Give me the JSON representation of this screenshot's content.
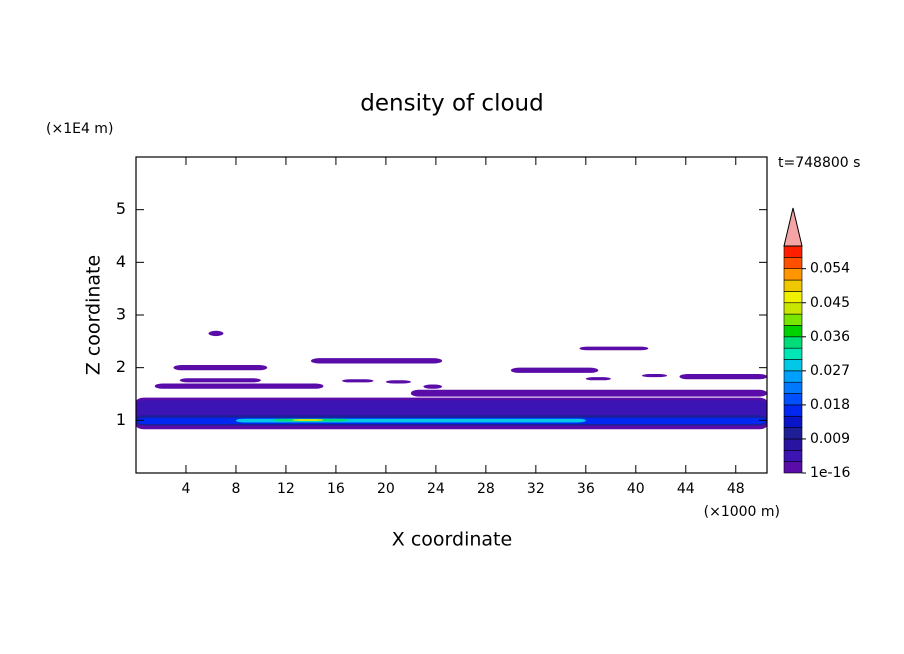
{
  "chart_data": {
    "type": "contour",
    "title": "density of cloud",
    "xlabel": "X coordinate",
    "ylabel": "Z coordinate",
    "xunit": "(×1000 m)",
    "yunit": "(×1E4 m)",
    "time_label": "t=748800 s",
    "xlim": [
      0,
      50.5
    ],
    "ylim": [
      0,
      6
    ],
    "xticks": [
      4,
      8,
      12,
      16,
      20,
      24,
      28,
      32,
      36,
      40,
      44,
      48
    ],
    "yticks": [
      1,
      2,
      3,
      4,
      5
    ],
    "colorbar": {
      "lim": [
        1e-16,
        0.06
      ],
      "ticks": [
        1e-16,
        0.009,
        0.018,
        0.027,
        0.036,
        0.045,
        0.054
      ],
      "colors": [
        "#5a0ca8",
        "#3c14b4",
        "#2814a0",
        "#1e1e96",
        "#0a14c8",
        "#0028f0",
        "#0050ff",
        "#0078ff",
        "#00a0ff",
        "#00c8e6",
        "#00e6b4",
        "#00dc78",
        "#00d200",
        "#78e600",
        "#c8e600",
        "#f0f000",
        "#f0c800",
        "#ff9600",
        "#ff5000",
        "#ff1e00"
      ],
      "extend_color": "#f4a4a4"
    },
    "regions": [
      {
        "x": [
          0,
          50.5
        ],
        "z": [
          0.83,
          1.43
        ],
        "value": 0.001
      },
      {
        "x": [
          0,
          50.5
        ],
        "z": [
          0.9,
          1.38
        ],
        "value": 0.004
      },
      {
        "x": [
          0,
          50.5
        ],
        "z": [
          0.9,
          1.1
        ],
        "value": 0.01
      },
      {
        "x": [
          0,
          50.5
        ],
        "z": [
          0.93,
          1.05
        ],
        "value": 0.016
      },
      {
        "x": [
          8,
          36
        ],
        "z": [
          0.96,
          1.03
        ],
        "value": 0.028
      },
      {
        "x": [
          11,
          17
        ],
        "z": [
          0.98,
          1.03
        ],
        "value": 0.034
      },
      {
        "x": [
          12.5,
          15
        ],
        "z": [
          0.99,
          1.02
        ],
        "value": 0.046
      },
      {
        "x": [
          22,
          50.5
        ],
        "z": [
          1.45,
          1.58
        ],
        "value": 0.001
      },
      {
        "x": [
          5.8,
          7
        ],
        "z": [
          2.6,
          2.7
        ],
        "value": 0.001
      },
      {
        "x": [
          3,
          10.5
        ],
        "z": [
          1.95,
          2.05
        ],
        "value": 0.001
      },
      {
        "x": [
          14,
          24.5
        ],
        "z": [
          2.08,
          2.18
        ],
        "value": 0.001
      },
      {
        "x": [
          1.5,
          15
        ],
        "z": [
          1.6,
          1.7
        ],
        "value": 0.001
      },
      {
        "x": [
          3.5,
          10
        ],
        "z": [
          1.72,
          1.8
        ],
        "value": 0.001
      },
      {
        "x": [
          16.5,
          19
        ],
        "z": [
          1.72,
          1.78
        ],
        "value": 0.001
      },
      {
        "x": [
          20,
          22
        ],
        "z": [
          1.7,
          1.76
        ],
        "value": 0.001
      },
      {
        "x": [
          23,
          24.5
        ],
        "z": [
          1.6,
          1.68
        ],
        "value": 0.001
      },
      {
        "x": [
          30,
          37
        ],
        "z": [
          1.9,
          2.0
        ],
        "value": 0.001
      },
      {
        "x": [
          35.5,
          41
        ],
        "z": [
          2.33,
          2.4
        ],
        "value": 0.001
      },
      {
        "x": [
          36,
          38
        ],
        "z": [
          1.76,
          1.82
        ],
        "value": 0.001
      },
      {
        "x": [
          40.5,
          42.5
        ],
        "z": [
          1.82,
          1.88
        ],
        "value": 0.001
      },
      {
        "x": [
          43.5,
          50.5
        ],
        "z": [
          1.78,
          1.88
        ],
        "value": 0.001
      }
    ]
  }
}
